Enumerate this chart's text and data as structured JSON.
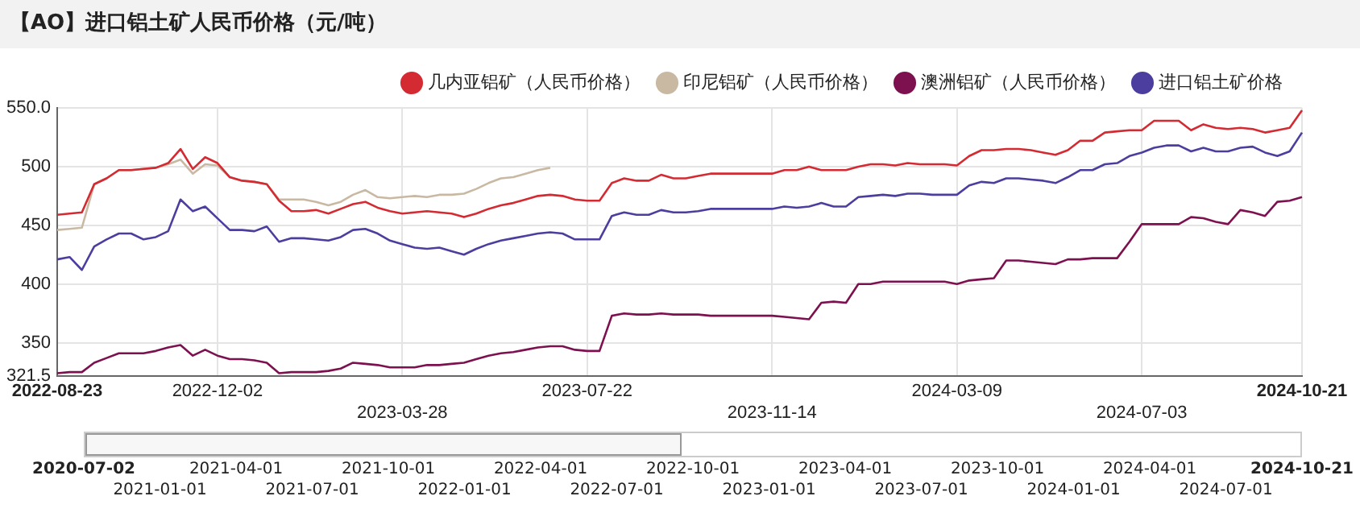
{
  "chart_data": {
    "type": "line",
    "title": "【AO】进口铝土矿人民币价格（元/吨）",
    "categories": [
      "2022-08-23",
      null,
      null,
      null,
      null,
      null,
      null,
      null,
      null,
      null,
      null,
      null,
      null,
      "2022-12-02",
      null,
      null,
      null,
      null,
      null,
      null,
      null,
      null,
      null,
      null,
      null,
      null,
      null,
      null,
      "2023-03-28",
      null,
      null,
      null,
      null,
      null,
      null,
      null,
      null,
      null,
      null,
      null,
      null,
      null,
      null,
      "2023-07-22",
      null,
      null,
      null,
      null,
      null,
      null,
      null,
      null,
      null,
      null,
      null,
      null,
      null,
      null,
      "2023-11-14",
      null,
      null,
      null,
      null,
      null,
      null,
      null,
      null,
      null,
      null,
      null,
      null,
      null,
      null,
      "2024-03-09",
      null,
      null,
      null,
      null,
      null,
      null,
      null,
      null,
      null,
      null,
      null,
      null,
      null,
      null,
      "2024-07-03",
      null,
      null,
      null,
      null,
      null,
      null,
      null,
      null,
      null,
      null,
      null,
      null,
      "2024-10-21"
    ],
    "series": [
      {
        "name": "几内亚铝矿（人民币价格）",
        "color": "#d42a32",
        "values": [
          459,
          460,
          461,
          485,
          490,
          497,
          497,
          498,
          499,
          503,
          515,
          498,
          508,
          503,
          491,
          488,
          487,
          485,
          471,
          462,
          462,
          463,
          460,
          464,
          468,
          470,
          465,
          462,
          460,
          461,
          462,
          461,
          460,
          457,
          460,
          464,
          467,
          469,
          472,
          475,
          476,
          475,
          472,
          471,
          471,
          486,
          490,
          488,
          488,
          493,
          490,
          490,
          492,
          494,
          494,
          494,
          494,
          494,
          494,
          497,
          497,
          500,
          497,
          497,
          497,
          500,
          502,
          502,
          501,
          503,
          502,
          502,
          502,
          501,
          509,
          514,
          514,
          515,
          515,
          514,
          512,
          510,
          514,
          522,
          522,
          529,
          530,
          531,
          531,
          539,
          539,
          539,
          531,
          536,
          533,
          532,
          533,
          532,
          529,
          531,
          533,
          548
        ]
      },
      {
        "name": "印尼铝矿（人民币价格）",
        "color": "#c9b9a3",
        "values": [
          446,
          447,
          448,
          485,
          490,
          497,
          497,
          498,
          499,
          502,
          506,
          494,
          502,
          501,
          491,
          488,
          487,
          485,
          472,
          472,
          472,
          470,
          467,
          470,
          476,
          480,
          474,
          473,
          474,
          475,
          474,
          476,
          476,
          477,
          481,
          486,
          490,
          491,
          494,
          497,
          499,
          null,
          null,
          null,
          null,
          null,
          null,
          null,
          null,
          null,
          null,
          null,
          null,
          null,
          null,
          null,
          null,
          null,
          null,
          null,
          null,
          null,
          null,
          null,
          null,
          null,
          null,
          null,
          null,
          null,
          null,
          null,
          null,
          null,
          null,
          null,
          null,
          null,
          null,
          null,
          null,
          null,
          null,
          null,
          null,
          null,
          null,
          null,
          null,
          null,
          null,
          null,
          null,
          null,
          null,
          null,
          null,
          null,
          null,
          null,
          null,
          null
        ]
      },
      {
        "name": "澳洲铝矿（人民币价格）",
        "color": "#7d1150",
        "values": [
          324,
          325,
          325,
          333,
          337,
          341,
          341,
          341,
          343,
          346,
          348,
          339,
          344,
          339,
          336,
          336,
          335,
          333,
          324,
          325,
          325,
          325,
          326,
          328,
          333,
          332,
          331,
          329,
          329,
          329,
          331,
          331,
          332,
          333,
          336,
          339,
          341,
          342,
          344,
          346,
          347,
          347,
          344,
          343,
          343,
          373,
          375,
          374,
          374,
          375,
          374,
          374,
          374,
          373,
          373,
          373,
          373,
          373,
          373,
          372,
          371,
          370,
          384,
          385,
          384,
          400,
          400,
          402,
          402,
          402,
          402,
          402,
          402,
          400,
          403,
          404,
          405,
          420,
          420,
          419,
          418,
          417,
          421,
          421,
          422,
          422,
          422,
          436,
          451,
          451,
          451,
          451,
          457,
          456,
          453,
          451,
          463,
          461,
          458,
          470,
          471,
          474
        ]
      },
      {
        "name": "进口铝土矿价格",
        "color": "#4b3e9e",
        "values": [
          421,
          423,
          412,
          432,
          438,
          443,
          443,
          438,
          440,
          445,
          472,
          462,
          466,
          456,
          446,
          446,
          445,
          449,
          436,
          439,
          439,
          438,
          437,
          440,
          446,
          447,
          443,
          437,
          434,
          431,
          430,
          431,
          428,
          425,
          430,
          434,
          437,
          439,
          441,
          443,
          444,
          443,
          438,
          438,
          438,
          458,
          461,
          459,
          459,
          463,
          461,
          461,
          462,
          464,
          464,
          464,
          464,
          464,
          464,
          466,
          465,
          466,
          469,
          466,
          466,
          474,
          475,
          476,
          475,
          477,
          477,
          476,
          476,
          476,
          484,
          487,
          486,
          490,
          490,
          489,
          488,
          486,
          491,
          497,
          497,
          502,
          503,
          509,
          512,
          516,
          518,
          518,
          513,
          516,
          513,
          513,
          516,
          517,
          512,
          509,
          513,
          529
        ]
      }
    ],
    "ylim": [
      321.5,
      550
    ],
    "yticks": [
      321.5,
      350,
      400,
      450,
      500,
      {
        "value": 550,
        "label": "550.0"
      }
    ],
    "grid": true,
    "legend": "top right",
    "marker": "none",
    "line_style": "solid",
    "annotations": [
      "2020-07-02",
      "2021-01-01",
      "2021-04-01",
      "2021-07-01",
      "2021-10-01",
      "2022-01-01",
      "2022-04-01",
      "2022-07-01",
      "2022-10-01",
      "2023-01-01",
      "2023-04-01",
      "2023-07-01",
      "2023-10-01",
      "2024-01-01",
      "2024-04-01",
      "2024-07-01",
      "2024-10-21"
    ]
  }
}
